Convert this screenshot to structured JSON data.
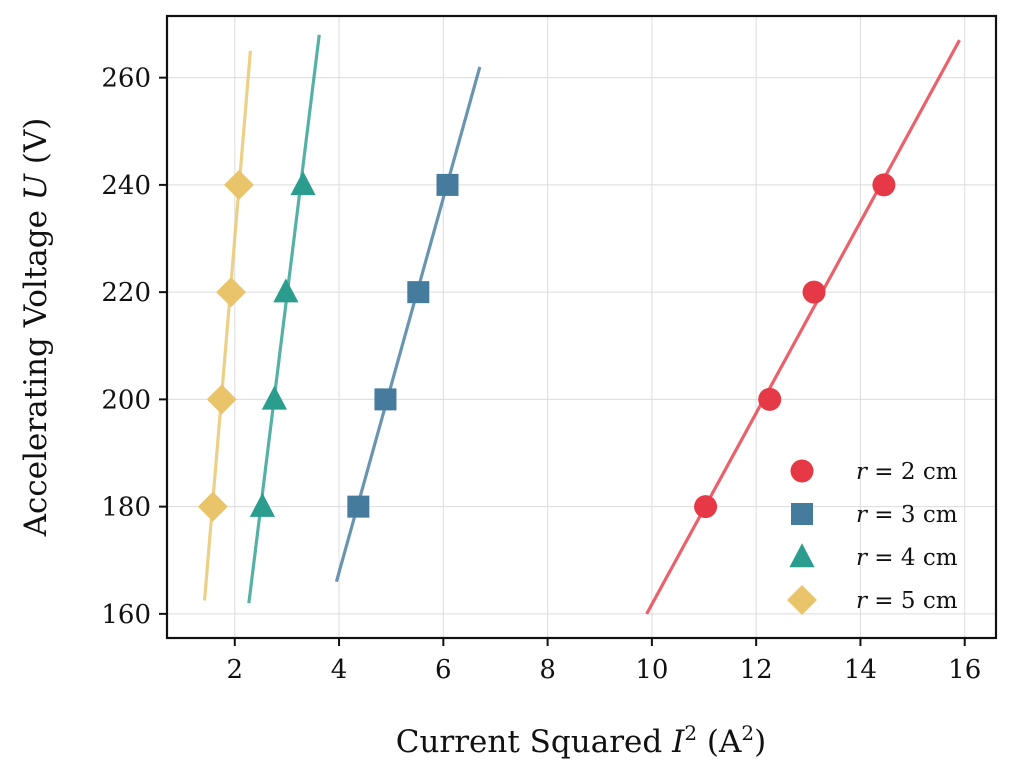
{
  "chart_data": {
    "type": "scatter",
    "title": "",
    "xlabel": {
      "prefix": "Current Squared ",
      "var": "I",
      "sup": "2",
      "unit_open": " (A",
      "unit_sup": "2",
      "unit_close": ")"
    },
    "ylabel": {
      "prefix": "Accelerating Voltage ",
      "var": "U",
      "unit": " (V)"
    },
    "xlim": [
      0.7,
      16.6
    ],
    "ylim": [
      155.5,
      271.5
    ],
    "xticks": [
      2,
      4,
      6,
      8,
      10,
      12,
      14,
      16
    ],
    "yticks": [
      160,
      180,
      200,
      220,
      240,
      260
    ],
    "grid": true,
    "legend_position": "lower-right",
    "series": [
      {
        "name": "r = 2 cm",
        "legend": {
          "var": "r",
          "eq": " = 2 cm"
        },
        "color": "#e63946",
        "marker": "circle",
        "points": [
          [
            11.03,
            180
          ],
          [
            12.26,
            200
          ],
          [
            13.11,
            220
          ],
          [
            14.45,
            240
          ]
        ],
        "fit": [
          [
            9.9,
            160
          ],
          [
            15.9,
            267
          ]
        ]
      },
      {
        "name": "r = 3 cm",
        "legend": {
          "var": "r",
          "eq": " = 3 cm"
        },
        "color": "#457b9d",
        "marker": "square",
        "points": [
          [
            4.37,
            180
          ],
          [
            4.89,
            200
          ],
          [
            5.52,
            220
          ],
          [
            6.08,
            240
          ]
        ],
        "fit": [
          [
            3.95,
            166
          ],
          [
            6.7,
            262
          ]
        ]
      },
      {
        "name": "r = 4 cm",
        "legend": {
          "var": "r",
          "eq": " = 4 cm"
        },
        "color": "#2a9d8f",
        "marker": "triangle",
        "points": [
          [
            2.53,
            180
          ],
          [
            2.76,
            200
          ],
          [
            2.98,
            220
          ],
          [
            3.31,
            240
          ]
        ],
        "fit": [
          [
            2.27,
            162
          ],
          [
            3.62,
            268
          ]
        ]
      },
      {
        "name": "r = 5 cm",
        "legend": {
          "var": "r",
          "eq": " = 5 cm"
        },
        "color": "#e9c46a",
        "marker": "diamond",
        "points": [
          [
            1.58,
            180
          ],
          [
            1.75,
            200
          ],
          [
            1.93,
            220
          ],
          [
            2.08,
            240
          ]
        ],
        "fit": [
          [
            1.42,
            162.5
          ],
          [
            2.3,
            265
          ]
        ]
      }
    ]
  }
}
